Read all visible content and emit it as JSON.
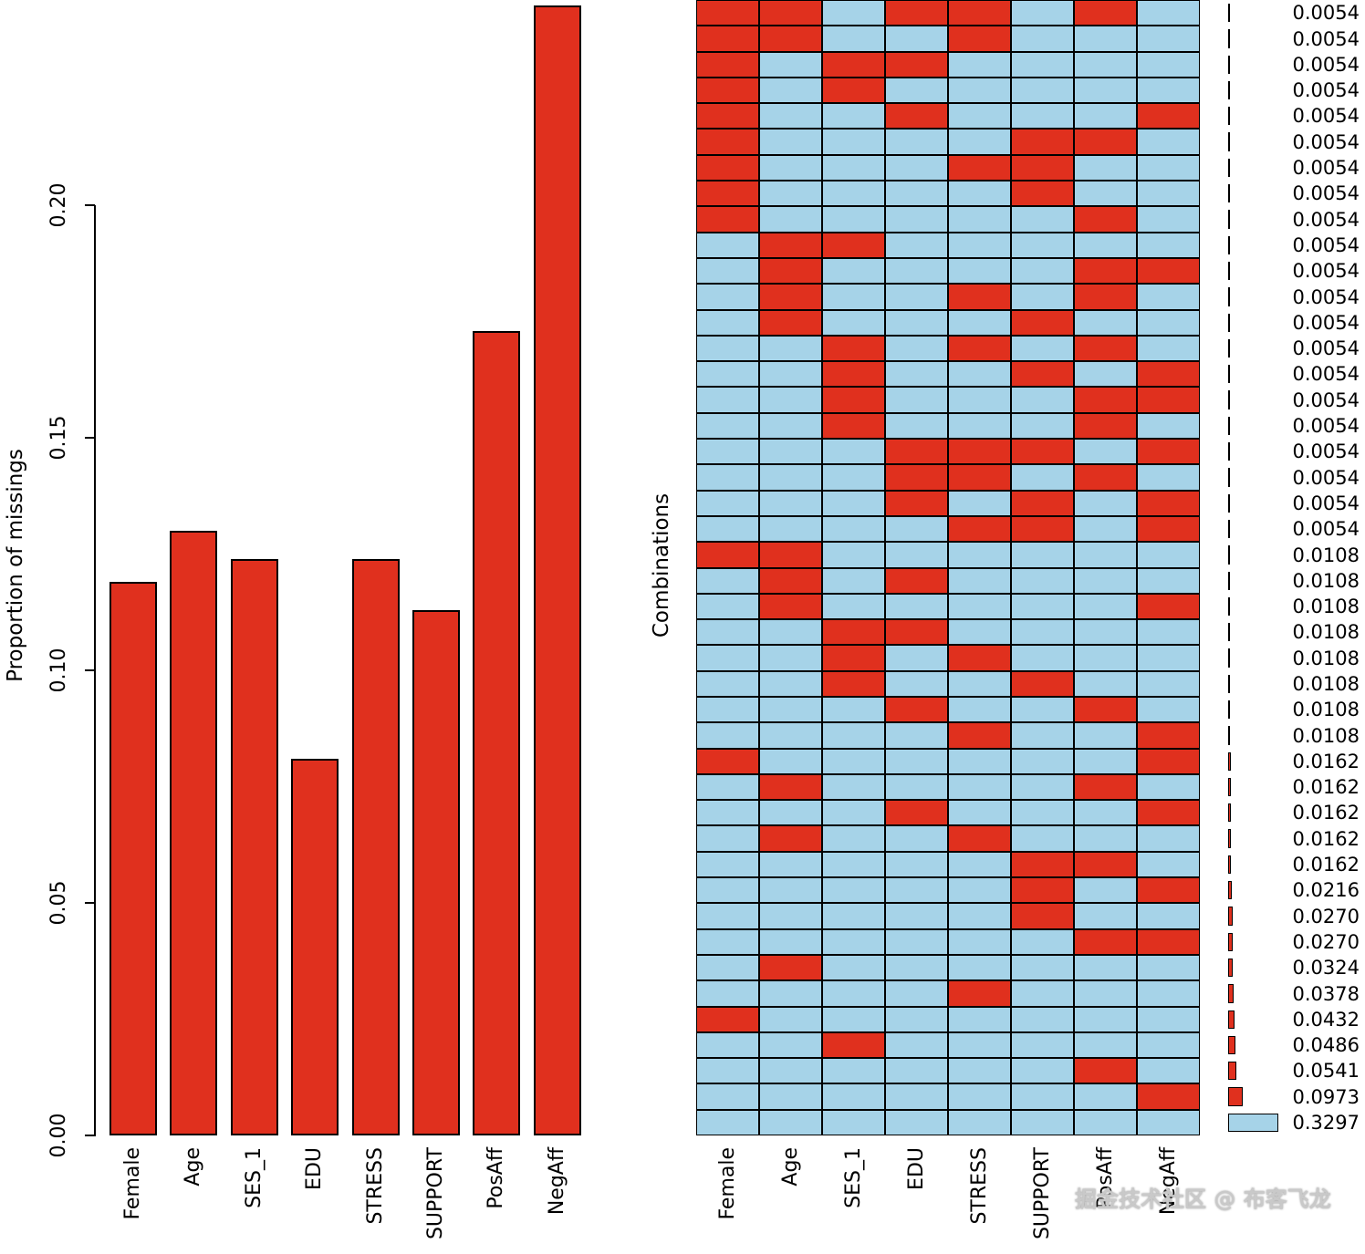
{
  "watermark": "掘金技术社区 @ 布客飞龙",
  "chart_data": [
    {
      "type": "bar",
      "panel": "left",
      "title": "",
      "xlabel": "",
      "ylabel": "Proportion of missings",
      "categories": [
        "Female",
        "Age",
        "SES_1",
        "EDU",
        "STRESS",
        "SUPPORT",
        "PosAff",
        "NegAff"
      ],
      "values": [
        0.119,
        0.13,
        0.124,
        0.081,
        0.124,
        0.113,
        0.173,
        0.243
      ],
      "ytick_labels": [
        "0.00",
        "0.05",
        "0.10",
        "0.15",
        "0.20"
      ],
      "ytick_values": [
        0.0,
        0.05,
        0.1,
        0.15,
        0.2
      ],
      "ylim": [
        0,
        0.244
      ],
      "grid": false,
      "bar_color": "#E0301E",
      "bar_outline": "#000000"
    },
    {
      "type": "heatmap",
      "panel": "right",
      "ylabel": "Combinations",
      "columns": [
        "Female",
        "Age",
        "SES_1",
        "EDU",
        "STRESS",
        "SUPPORT",
        "PosAff",
        "NegAff"
      ],
      "colors": {
        "missing": "#E0301E",
        "observed": "#A6D3E8"
      },
      "legend_max_freq": 0.3297,
      "rows": [
        {
          "pattern": [
            1,
            1,
            0,
            1,
            1,
            0,
            1,
            0
          ],
          "freq": "0.0054"
        },
        {
          "pattern": [
            1,
            1,
            0,
            0,
            1,
            0,
            0,
            0
          ],
          "freq": "0.0054"
        },
        {
          "pattern": [
            1,
            0,
            1,
            1,
            0,
            0,
            0,
            0
          ],
          "freq": "0.0054"
        },
        {
          "pattern": [
            1,
            0,
            1,
            0,
            0,
            0,
            0,
            0
          ],
          "freq": "0.0054"
        },
        {
          "pattern": [
            1,
            0,
            0,
            1,
            0,
            0,
            0,
            1
          ],
          "freq": "0.0054"
        },
        {
          "pattern": [
            1,
            0,
            0,
            0,
            0,
            1,
            1,
            0
          ],
          "freq": "0.0054"
        },
        {
          "pattern": [
            1,
            0,
            0,
            0,
            1,
            1,
            0,
            0
          ],
          "freq": "0.0054"
        },
        {
          "pattern": [
            1,
            0,
            0,
            0,
            0,
            1,
            0,
            0
          ],
          "freq": "0.0054"
        },
        {
          "pattern": [
            1,
            0,
            0,
            0,
            0,
            0,
            1,
            0
          ],
          "freq": "0.0054"
        },
        {
          "pattern": [
            0,
            1,
            1,
            0,
            0,
            0,
            0,
            0
          ],
          "freq": "0.0054"
        },
        {
          "pattern": [
            0,
            1,
            0,
            0,
            0,
            0,
            1,
            1
          ],
          "freq": "0.0054"
        },
        {
          "pattern": [
            0,
            1,
            0,
            0,
            1,
            0,
            1,
            0
          ],
          "freq": "0.0054"
        },
        {
          "pattern": [
            0,
            1,
            0,
            0,
            0,
            1,
            0,
            0
          ],
          "freq": "0.0054"
        },
        {
          "pattern": [
            0,
            0,
            1,
            0,
            1,
            0,
            1,
            0
          ],
          "freq": "0.0054"
        },
        {
          "pattern": [
            0,
            0,
            1,
            0,
            0,
            1,
            0,
            1
          ],
          "freq": "0.0054"
        },
        {
          "pattern": [
            0,
            0,
            1,
            0,
            0,
            0,
            1,
            1
          ],
          "freq": "0.0054"
        },
        {
          "pattern": [
            0,
            0,
            1,
            0,
            0,
            0,
            1,
            0
          ],
          "freq": "0.0054"
        },
        {
          "pattern": [
            0,
            0,
            0,
            1,
            1,
            1,
            0,
            1
          ],
          "freq": "0.0054"
        },
        {
          "pattern": [
            0,
            0,
            0,
            1,
            1,
            0,
            1,
            0
          ],
          "freq": "0.0054"
        },
        {
          "pattern": [
            0,
            0,
            0,
            1,
            0,
            1,
            0,
            1
          ],
          "freq": "0.0054"
        },
        {
          "pattern": [
            0,
            0,
            0,
            0,
            1,
            1,
            0,
            1
          ],
          "freq": "0.0054"
        },
        {
          "pattern": [
            1,
            1,
            0,
            0,
            0,
            0,
            0,
            0
          ],
          "freq": "0.0108"
        },
        {
          "pattern": [
            0,
            1,
            0,
            1,
            0,
            0,
            0,
            0
          ],
          "freq": "0.0108"
        },
        {
          "pattern": [
            0,
            1,
            0,
            0,
            0,
            0,
            0,
            1
          ],
          "freq": "0.0108"
        },
        {
          "pattern": [
            0,
            0,
            1,
            1,
            0,
            0,
            0,
            0
          ],
          "freq": "0.0108"
        },
        {
          "pattern": [
            0,
            0,
            1,
            0,
            1,
            0,
            0,
            0
          ],
          "freq": "0.0108"
        },
        {
          "pattern": [
            0,
            0,
            1,
            0,
            0,
            1,
            0,
            0
          ],
          "freq": "0.0108"
        },
        {
          "pattern": [
            0,
            0,
            0,
            1,
            0,
            0,
            1,
            0
          ],
          "freq": "0.0108"
        },
        {
          "pattern": [
            0,
            0,
            0,
            0,
            1,
            0,
            0,
            1
          ],
          "freq": "0.0108"
        },
        {
          "pattern": [
            1,
            0,
            0,
            0,
            0,
            0,
            0,
            1
          ],
          "freq": "0.0162"
        },
        {
          "pattern": [
            0,
            1,
            0,
            0,
            0,
            0,
            1,
            0
          ],
          "freq": "0.0162"
        },
        {
          "pattern": [
            0,
            0,
            0,
            1,
            0,
            0,
            0,
            1
          ],
          "freq": "0.0162"
        },
        {
          "pattern": [
            0,
            1,
            0,
            0,
            1,
            0,
            0,
            0
          ],
          "freq": "0.0162"
        },
        {
          "pattern": [
            0,
            0,
            0,
            0,
            0,
            1,
            1,
            0
          ],
          "freq": "0.0162"
        },
        {
          "pattern": [
            0,
            0,
            0,
            0,
            0,
            1,
            0,
            1
          ],
          "freq": "0.0216"
        },
        {
          "pattern": [
            0,
            0,
            0,
            0,
            0,
            1,
            0,
            0
          ],
          "freq": "0.0270"
        },
        {
          "pattern": [
            0,
            0,
            0,
            0,
            0,
            0,
            1,
            1
          ],
          "freq": "0.0270"
        },
        {
          "pattern": [
            0,
            1,
            0,
            0,
            0,
            0,
            0,
            0
          ],
          "freq": "0.0324"
        },
        {
          "pattern": [
            0,
            0,
            0,
            0,
            1,
            0,
            0,
            0
          ],
          "freq": "0.0378"
        },
        {
          "pattern": [
            1,
            0,
            0,
            0,
            0,
            0,
            0,
            0
          ],
          "freq": "0.0432"
        },
        {
          "pattern": [
            0,
            0,
            1,
            0,
            0,
            0,
            0,
            0
          ],
          "freq": "0.0486"
        },
        {
          "pattern": [
            0,
            0,
            0,
            0,
            0,
            0,
            1,
            0
          ],
          "freq": "0.0541"
        },
        {
          "pattern": [
            0,
            0,
            0,
            0,
            0,
            0,
            0,
            1
          ],
          "freq": "0.0973"
        },
        {
          "pattern": [
            0,
            0,
            0,
            0,
            0,
            0,
            0,
            0
          ],
          "freq": "0.3297"
        }
      ]
    }
  ]
}
